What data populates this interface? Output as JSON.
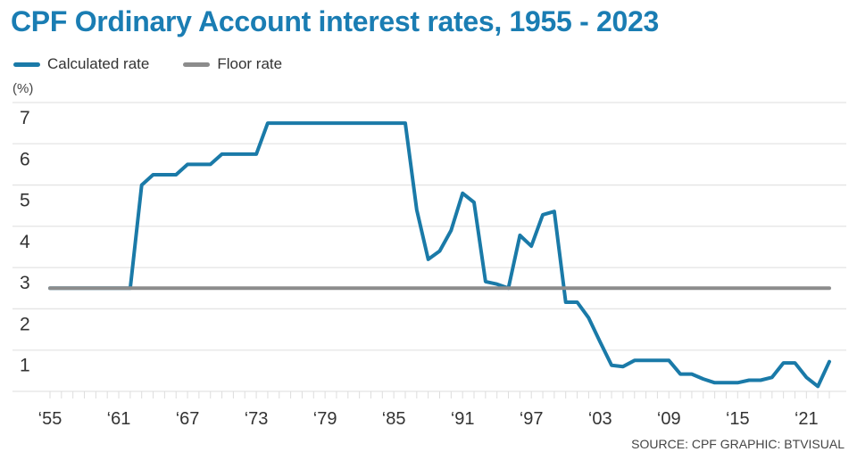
{
  "title": "CPF Ordinary Account interest rates, 1955 - 2023",
  "unit_label": "(%)",
  "source": "SOURCE: CPF   GRAPHIC: BTVISUAL",
  "chart_data": {
    "type": "line",
    "title": "CPF Ordinary Account interest rates, 1955 - 2023",
    "ylabel": "(%)",
    "xlabel": "",
    "xlim": [
      1955,
      2023
    ],
    "ylim": [
      0,
      7
    ],
    "grid": true,
    "legend_placement": "top-left",
    "y_ticks": [
      "1",
      "2",
      "3",
      "4",
      "5",
      "6",
      "7"
    ],
    "x_ticks": [
      {
        "year": 1955,
        "label": "‘55"
      },
      {
        "year": 1961,
        "label": "‘61"
      },
      {
        "year": 1967,
        "label": "‘67"
      },
      {
        "year": 1973,
        "label": "‘73"
      },
      {
        "year": 1979,
        "label": "‘79"
      },
      {
        "year": 1985,
        "label": "‘85"
      },
      {
        "year": 1991,
        "label": "‘91"
      },
      {
        "year": 1997,
        "label": "‘97"
      },
      {
        "year": 2003,
        "label": "‘03"
      },
      {
        "year": 2009,
        "label": "‘09"
      },
      {
        "year": 2015,
        "label": "‘15"
      },
      {
        "year": 2021,
        "label": "‘21"
      }
    ],
    "series": [
      {
        "name": "Calculated rate",
        "color": "#1a7aa8",
        "x": [
          1955,
          1956,
          1957,
          1958,
          1959,
          1960,
          1961,
          1962,
          1963,
          1964,
          1965,
          1966,
          1967,
          1968,
          1969,
          1970,
          1971,
          1972,
          1973,
          1974,
          1975,
          1976,
          1977,
          1978,
          1979,
          1980,
          1981,
          1982,
          1983,
          1984,
          1985,
          1986,
          1987,
          1988,
          1989,
          1990,
          1991,
          1992,
          1993,
          1994,
          1995,
          1996,
          1997,
          1998,
          1999,
          2000,
          2001,
          2002,
          2003,
          2004,
          2005,
          2006,
          2007,
          2008,
          2009,
          2010,
          2011,
          2012,
          2013,
          2014,
          2015,
          2016,
          2017,
          2018,
          2019,
          2020,
          2021,
          2022,
          2023
        ],
        "values": [
          2.5,
          2.5,
          2.5,
          2.5,
          2.5,
          2.5,
          2.5,
          2.5,
          5.0,
          5.25,
          5.25,
          5.25,
          5.5,
          5.5,
          5.5,
          5.75,
          5.75,
          5.75,
          5.75,
          6.5,
          6.5,
          6.5,
          6.5,
          6.5,
          6.5,
          6.5,
          6.5,
          6.5,
          6.5,
          6.5,
          6.5,
          6.5,
          4.4,
          3.2,
          3.4,
          3.9,
          4.8,
          4.58,
          2.66,
          2.6,
          2.5,
          3.78,
          3.52,
          4.28,
          4.36,
          2.16,
          2.16,
          1.78,
          1.2,
          0.63,
          0.6,
          0.75,
          0.75,
          0.75,
          0.75,
          0.42,
          0.42,
          0.3,
          0.21,
          0.21,
          0.21,
          0.27,
          0.27,
          0.34,
          0.69,
          0.69,
          0.34,
          0.12,
          0.72
        ]
      },
      {
        "name": "Floor rate",
        "color": "#8c8c8c",
        "x": [
          1955,
          2023
        ],
        "values": [
          2.5,
          2.5
        ]
      }
    ]
  }
}
